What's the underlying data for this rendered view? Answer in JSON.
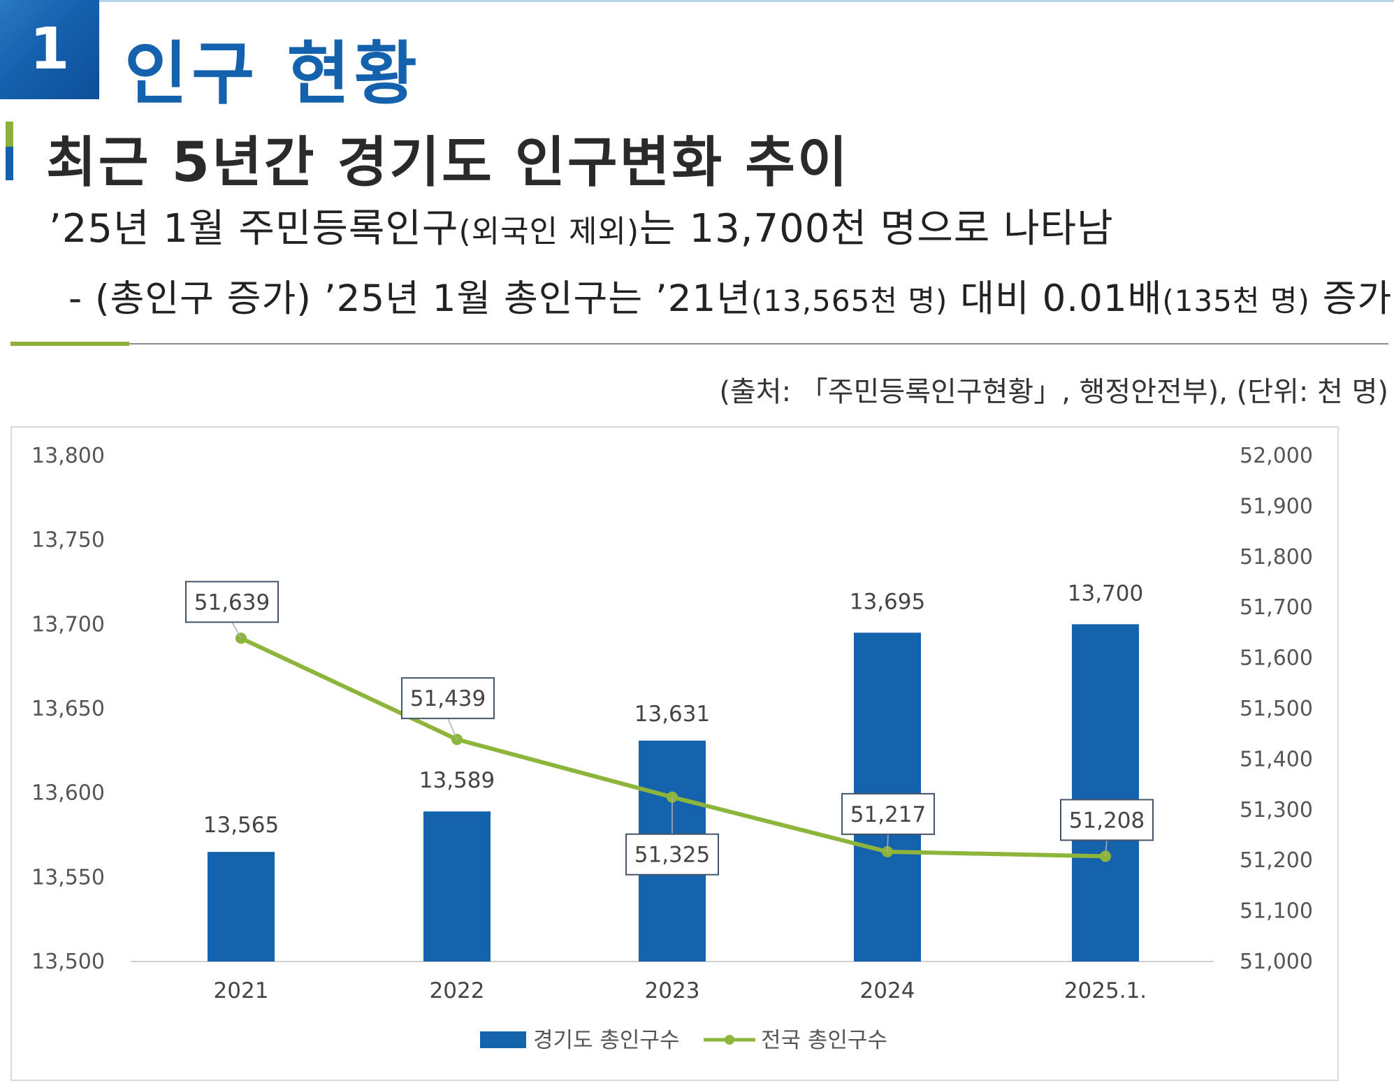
{
  "header": {
    "section_number": "1",
    "section_title": "인구 현황",
    "subtitle": "최근 5년간 경기도 인구변화 추이",
    "summary_main_a": "’25년 1월 주민등록인구",
    "summary_small": "(외국인 제외)",
    "summary_main_b": "는 13,700천 명으로 나타남",
    "detail_a": "- (총인구 증가) ’25년 1월 총인구는 ’21년",
    "detail_small_a": "(13,565천 명)",
    "detail_b": " 대비 0.01배",
    "detail_small_b": "(135천 명)",
    "detail_c": " 증가",
    "source": "(출처: 「주민등록인구현황」, 행정안전부), (단위: 천 명)"
  },
  "colors": {
    "bar": "#1562ad",
    "line": "#8db43b",
    "brand_blue": "#1461ad",
    "accent_green": "#8bb13a"
  },
  "chart_data": {
    "type": "bar",
    "categories": [
      "2021",
      "2022",
      "2023",
      "2024",
      "2025.1."
    ],
    "series": [
      {
        "name": "경기도 총인구수",
        "type": "bar",
        "axis": "left",
        "values": [
          13565,
          13589,
          13631,
          13695,
          13700
        ],
        "labels": [
          "13,565",
          "13,589",
          "13,631",
          "13,695",
          "13,700"
        ]
      },
      {
        "name": "전국 총인구수",
        "type": "line",
        "axis": "right",
        "values": [
          51639,
          51439,
          51325,
          51217,
          51208
        ],
        "labels": [
          "51,639",
          "51,439",
          "51,325",
          "51,217",
          "51,208"
        ]
      }
    ],
    "y_left": {
      "range": [
        13500,
        13800
      ],
      "ticks": [
        "13,500",
        "13,550",
        "13,600",
        "13,650",
        "13,700",
        "13,750",
        "13,800"
      ]
    },
    "y_right": {
      "range": [
        51000,
        52000
      ],
      "ticks": [
        "51,000",
        "51,100",
        "51,200",
        "51,300",
        "51,400",
        "51,500",
        "51,600",
        "51,700",
        "51,800",
        "51,900",
        "52,000"
      ]
    },
    "grid": false,
    "legend_position": "bottom"
  }
}
